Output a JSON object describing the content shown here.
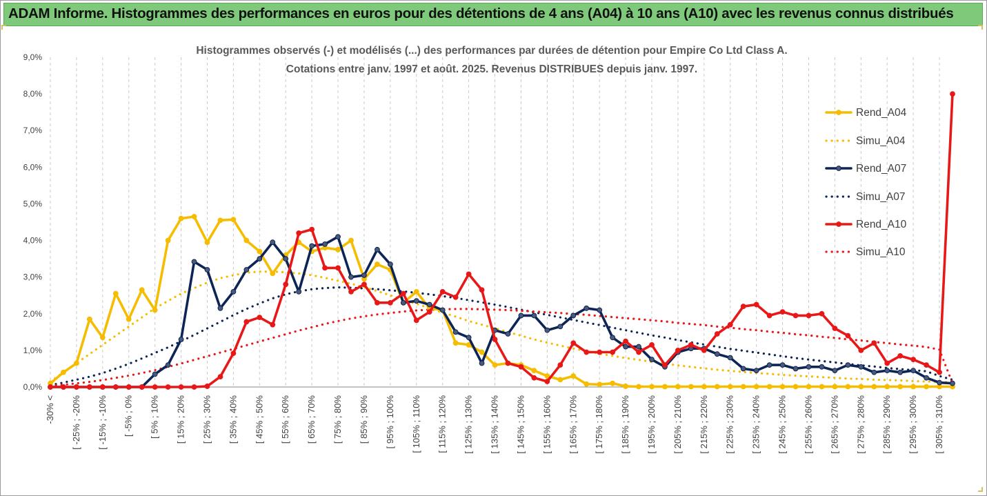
{
  "banner": {
    "title": "ADAM Informe. Histogrammes des performances en euros pour des détentions de 4 ans (A04) à 10 ans (A10) avec les revenus connus distribués"
  },
  "chart_data": {
    "type": "line",
    "title_line1": "Histogrammes observés (-) et modélisés (...)  des performances par durées de détention pour Empire Co Ltd Class A.",
    "title_line2": "Cotations entre janv. 1997 et août. 2025. Revenus DISTRIBUES depuis janv. 1997.",
    "ylim": [
      0,
      9
    ],
    "y_ticks": [
      "0,0%",
      "1,0%",
      "2,0%",
      "3,0%",
      "4,0%",
      "5,0%",
      "6,0%",
      "7,0%",
      "8,0%",
      "9,0%"
    ],
    "y_unit": "%",
    "grid": "vertical dashed",
    "legend_position": "right",
    "x_tick_labels": [
      "-30% <",
      "[ -25% ; -20%",
      "[ -15% ; -10%",
      "[ -5% ; 0%",
      "[ 5% ; 10%",
      "[ 15% ; 20%",
      "[ 25% ; 30%",
      "[ 35% ; 40%",
      "[ 45% ; 50%",
      "[ 55% ; 60%",
      "[ 65% ; 70%",
      "[ 75% ; 80%",
      "[ 85% ; 90%",
      "[ 95% ; 100%",
      "[ 105% ; 110%",
      "[ 115% ; 120%",
      "[ 125% ; 130%",
      "[ 135% ; 140%",
      "[ 145% ; 150%",
      "[ 155% ; 160%",
      "[ 165% ; 170%",
      "[ 175% ; 180%",
      "[ 185% ; 190%",
      "[ 195% ; 200%",
      "[ 205% ; 210%",
      "[ 215% ; 220%",
      "[ 225% ; 230%",
      "[ 235% ; 240%",
      "[ 245% ; 250%",
      "[ 255% ; 260%",
      "[ 265% ; 270%",
      "[ 275% ; 280%",
      "[ 285% ; 290%",
      "[ 295% ; 300%",
      "[ 305% ; 310%"
    ],
    "series": [
      {
        "name": "Rend_A04",
        "color": "#f5bc00",
        "style": "solid",
        "markers": true,
        "values": [
          0.1,
          0.4,
          0.65,
          1.85,
          1.35,
          2.55,
          1.85,
          2.65,
          2.1,
          4.0,
          4.6,
          4.65,
          3.95,
          4.55,
          4.57,
          4.0,
          3.7,
          3.1,
          3.6,
          3.95,
          3.7,
          3.8,
          3.75,
          4.0,
          2.95,
          3.35,
          3.2,
          2.3,
          2.6,
          2.15,
          2.1,
          1.2,
          1.15,
          0.95,
          0.6,
          0.65,
          0.6,
          0.45,
          0.3,
          0.2,
          0.3,
          0.08,
          0.07,
          0.1,
          0.02,
          0.01,
          0.01,
          0.01,
          0.01,
          0.01,
          0.01,
          0.01,
          0.01,
          0.01,
          0.01,
          0.01,
          0.01,
          0.01,
          0.01,
          0.01,
          0.01,
          0.01,
          0.01,
          0.01,
          0.01,
          0.01,
          0.01,
          0.01,
          0.01,
          0.01
        ]
      },
      {
        "name": "Simu_A04",
        "color": "#f5bc00",
        "style": "dotted",
        "markers": false,
        "values": [
          0.15,
          0.4,
          0.65,
          0.9,
          1.15,
          1.4,
          1.65,
          1.9,
          2.15,
          2.35,
          2.55,
          2.7,
          2.85,
          2.97,
          3.05,
          3.12,
          3.15,
          3.15,
          3.13,
          3.1,
          3.05,
          2.98,
          2.9,
          2.82,
          2.72,
          2.62,
          2.5,
          2.38,
          2.27,
          2.15,
          2.03,
          1.92,
          1.8,
          1.7,
          1.6,
          1.5,
          1.4,
          1.3,
          1.21,
          1.13,
          1.05,
          0.98,
          0.91,
          0.85,
          0.79,
          0.74,
          0.69,
          0.64,
          0.59,
          0.55,
          0.51,
          0.47,
          0.44,
          0.41,
          0.38,
          0.36,
          0.33,
          0.31,
          0.29,
          0.27,
          0.25,
          0.23,
          0.22,
          0.2,
          0.19,
          0.18,
          0.16,
          0.15,
          0.14,
          0.13
        ]
      },
      {
        "name": "Rend_A07",
        "color": "#0d2456",
        "style": "solid",
        "markers": true,
        "values": [
          0.0,
          0.0,
          0.0,
          0.0,
          0.0,
          0.0,
          0.0,
          0.0,
          0.35,
          0.6,
          1.3,
          3.42,
          3.2,
          2.15,
          2.6,
          3.2,
          3.5,
          3.95,
          3.5,
          2.6,
          3.85,
          3.9,
          4.1,
          3.0,
          3.05,
          3.75,
          3.35,
          2.3,
          2.35,
          2.25,
          2.1,
          1.5,
          1.35,
          0.65,
          1.55,
          1.45,
          1.95,
          1.95,
          1.55,
          1.65,
          1.95,
          2.15,
          2.1,
          1.35,
          1.1,
          1.1,
          0.75,
          0.55,
          0.95,
          1.05,
          1.05,
          0.9,
          0.8,
          0.5,
          0.45,
          0.6,
          0.6,
          0.5,
          0.55,
          0.55,
          0.45,
          0.6,
          0.55,
          0.4,
          0.45,
          0.4,
          0.45,
          0.25,
          0.12,
          0.1
        ]
      },
      {
        "name": "Simu_A07",
        "color": "#0d2456",
        "style": "dotted",
        "markers": false,
        "values": [
          0.05,
          0.12,
          0.2,
          0.28,
          0.38,
          0.5,
          0.63,
          0.78,
          0.93,
          1.08,
          1.25,
          1.42,
          1.6,
          1.78,
          1.96,
          2.13,
          2.28,
          2.42,
          2.53,
          2.61,
          2.67,
          2.7,
          2.72,
          2.71,
          2.69,
          2.67,
          2.64,
          2.61,
          2.57,
          2.53,
          2.48,
          2.43,
          2.37,
          2.31,
          2.25,
          2.18,
          2.11,
          2.04,
          1.97,
          1.9,
          1.83,
          1.76,
          1.69,
          1.62,
          1.55,
          1.48,
          1.41,
          1.35,
          1.28,
          1.22,
          1.16,
          1.1,
          1.04,
          0.99,
          0.94,
          0.89,
          0.84,
          0.79,
          0.75,
          0.71,
          0.67,
          0.63,
          0.59,
          0.56,
          0.52,
          0.49,
          0.46,
          0.43,
          0.3,
          0.2
        ]
      },
      {
        "name": "Rend_A10",
        "color": "#e81818",
        "style": "solid",
        "markers": true,
        "values": [
          0.0,
          0.0,
          0.0,
          0.0,
          0.0,
          0.0,
          0.0,
          0.0,
          0.0,
          0.0,
          0.0,
          0.0,
          0.02,
          0.28,
          0.92,
          1.78,
          1.9,
          1.7,
          2.8,
          4.2,
          4.3,
          3.25,
          3.25,
          2.6,
          2.8,
          2.3,
          2.3,
          2.55,
          1.82,
          2.05,
          2.6,
          2.45,
          3.08,
          2.65,
          1.3,
          0.65,
          0.55,
          0.25,
          0.15,
          0.6,
          1.2,
          0.95,
          0.95,
          0.95,
          1.25,
          0.95,
          1.15,
          0.6,
          1.0,
          1.15,
          1.0,
          1.45,
          1.7,
          2.2,
          2.25,
          1.95,
          2.05,
          1.95,
          1.95,
          2.0,
          1.6,
          1.4,
          1.0,
          1.2,
          0.65,
          0.85,
          0.75,
          0.6,
          0.4,
          8.0
        ]
      },
      {
        "name": "Simu_A10",
        "color": "#e81818",
        "style": "dotted",
        "markers": false,
        "values": [
          0.03,
          0.06,
          0.1,
          0.14,
          0.19,
          0.25,
          0.31,
          0.38,
          0.46,
          0.55,
          0.64,
          0.74,
          0.84,
          0.94,
          1.04,
          1.14,
          1.24,
          1.34,
          1.44,
          1.54,
          1.63,
          1.72,
          1.8,
          1.87,
          1.93,
          1.98,
          2.02,
          2.06,
          2.09,
          2.11,
          2.12,
          2.13,
          2.13,
          2.12,
          2.11,
          2.1,
          2.08,
          2.06,
          2.04,
          2.02,
          1.99,
          1.97,
          1.94,
          1.91,
          1.88,
          1.85,
          1.82,
          1.79,
          1.75,
          1.72,
          1.69,
          1.65,
          1.62,
          1.58,
          1.55,
          1.51,
          1.48,
          1.44,
          1.41,
          1.37,
          1.34,
          1.3,
          1.27,
          1.23,
          1.2,
          1.16,
          1.13,
          1.09,
          1.02,
          0.1
        ]
      }
    ]
  }
}
